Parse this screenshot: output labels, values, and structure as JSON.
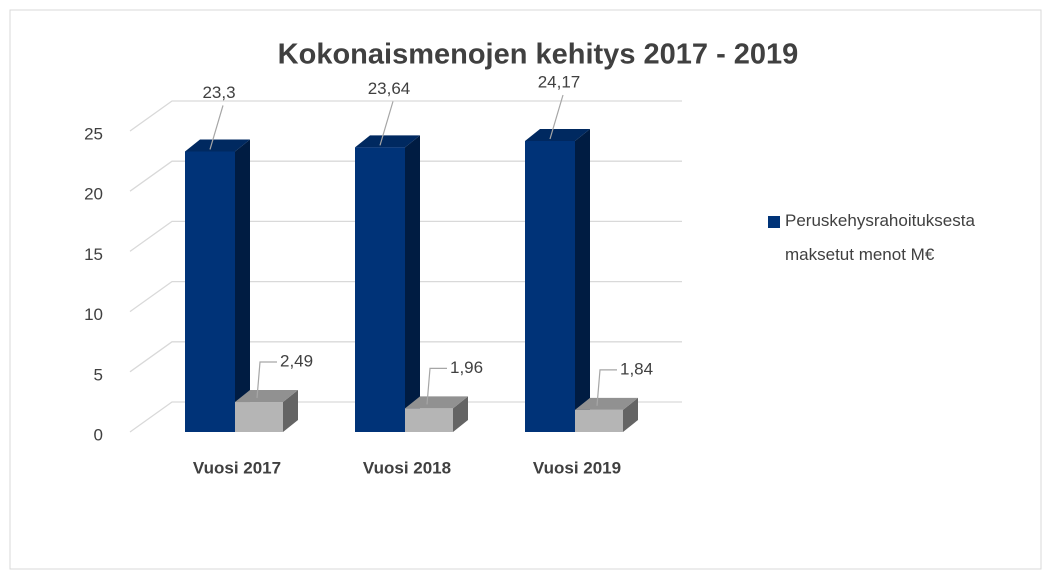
{
  "chart_data": {
    "type": "bar3d",
    "title": "Kokonaismenojen kehitys 2017 - 2019",
    "categories": [
      "Vuosi 2017",
      "Vuosi 2018",
      "Vuosi 2019"
    ],
    "series": [
      {
        "name": "Peruskehysrahoituksesta maksetut menot M€",
        "color": "#003378",
        "values": [
          23.3,
          23.64,
          24.17
        ],
        "value_labels": [
          "23,3",
          "23,64",
          "24,17"
        ]
      },
      {
        "color": "#b5b5b5",
        "values": [
          2.49,
          1.96,
          1.84
        ],
        "value_labels": [
          "2,49",
          "1,96",
          "1,84"
        ]
      }
    ],
    "ylim": [
      0,
      25
    ],
    "yticks": [
      0,
      5,
      10,
      15,
      20,
      25
    ],
    "grid": true,
    "legend": "right"
  }
}
